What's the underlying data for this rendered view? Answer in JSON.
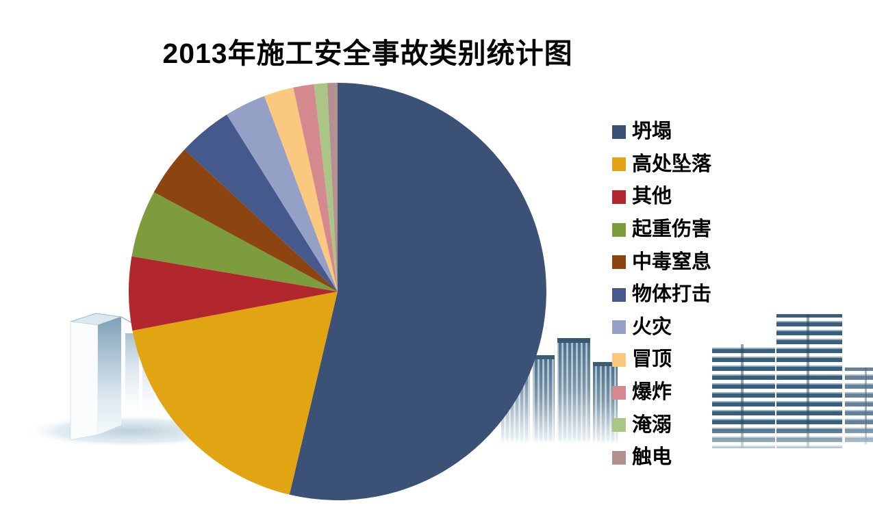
{
  "page": {
    "background_color": "#FFFFFF"
  },
  "chart_data": {
    "type": "pie",
    "title": "2013年施工安全事故类别统计图",
    "legend_position": "right",
    "start_angle_deg": 0,
    "direction": "clockwise",
    "unit": "percent_of_total",
    "slices": [
      {
        "label": "坍塌",
        "percent": 53.7,
        "color": "#3C5176"
      },
      {
        "label": "高处坠落",
        "percent": 18.3,
        "color": "#E1A514"
      },
      {
        "label": "其他",
        "percent": 5.7,
        "color": "#B2262E"
      },
      {
        "label": "起重伤害",
        "percent": 5.2,
        "color": "#7C9C3E"
      },
      {
        "label": "中毒窒息",
        "percent": 4.0,
        "color": "#8C4511"
      },
      {
        "label": "物体打击",
        "percent": 4.2,
        "color": "#46598C"
      },
      {
        "label": "火灾",
        "percent": 3.2,
        "color": "#94A0C6"
      },
      {
        "label": "冒顶",
        "percent": 2.3,
        "color": "#FAC87E"
      },
      {
        "label": "爆炸",
        "percent": 1.6,
        "color": "#D4898F"
      },
      {
        "label": "淹溺",
        "percent": 1.0,
        "color": "#ABC587"
      },
      {
        "label": "触电",
        "percent": 0.8,
        "color": "#B59090"
      }
    ]
  },
  "decorations": {
    "left_graphic": "light-blue-office-tower-watermark",
    "center_graphic": "steel-blue-skyscraper-cluster-watermark",
    "right_graphic": "stacked-floor-buildings-watermark"
  }
}
